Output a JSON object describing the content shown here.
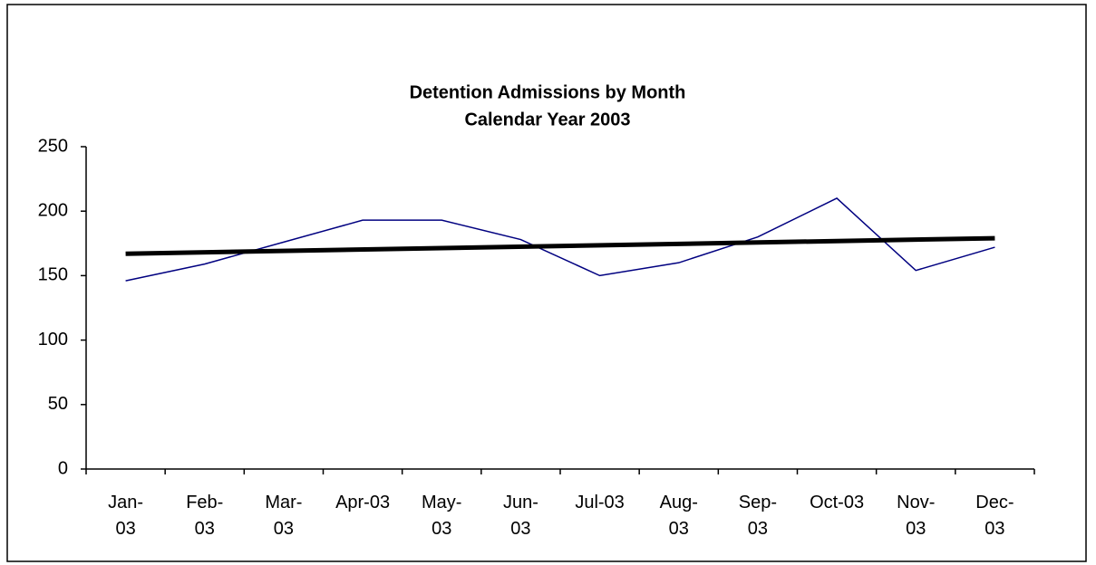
{
  "chart_data": {
    "type": "line",
    "title": "Detention Admissions by Month",
    "subtitle": "Calendar Year 2003",
    "categories": [
      "Jan-03",
      "Feb-03",
      "Mar-03",
      "Apr-03",
      "May-03",
      "Jun-03",
      "Jul-03",
      "Aug-03",
      "Sep-03",
      "Oct-03",
      "Nov-03",
      "Dec-03"
    ],
    "series": [
      {
        "color": "#000080",
        "values": [
          146,
          159,
          176,
          193,
          193,
          178,
          150,
          160,
          180,
          210,
          154,
          172
        ]
      }
    ],
    "trendline": {
      "start": 167,
      "end": 179,
      "color": "#000000"
    },
    "ylim": [
      0,
      250
    ],
    "yticks": [
      0,
      50,
      100,
      150,
      200,
      250
    ],
    "grid": false
  }
}
